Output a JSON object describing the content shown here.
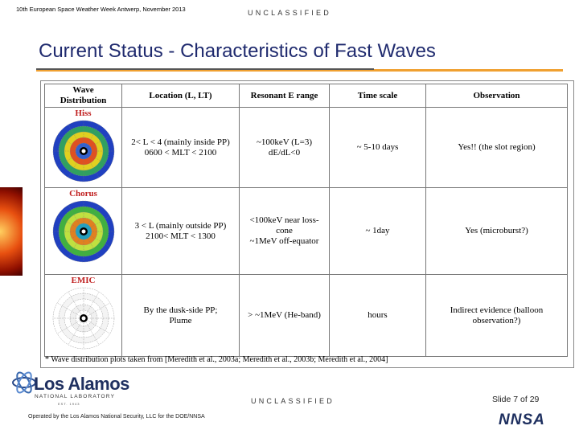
{
  "header": {
    "event": "10th European Space Weather Week Antwerp, November 2013",
    "classification": "UNCLASSIFIED"
  },
  "title": "Current Status - Characteristics of Fast Waves",
  "table": {
    "columns": [
      "Wave\nDistribution",
      "Location (L, LT)",
      "Resonant E range",
      "Time scale",
      "Observation"
    ],
    "rows": [
      [
        "Hiss",
        "2< L < 4 (mainly inside PP)\n0600 < MLT < 2100",
        "~100keV (L=3)\ndE/dL<0",
        "~ 5-10 days",
        "Yes!! (the slot region)"
      ],
      [
        "Chorus",
        "3 < L (mainly outside PP)\n2100< MLT < 1300",
        "<100keV near loss-\ncone\n~1MeV off-equator",
        "~ 1day",
        "Yes (microburst?)"
      ],
      [
        "EMIC",
        "By the dusk-side PP;\nPlume",
        "> ~1MeV (He-band)",
        "hours",
        "Indirect evidence (balloon\nobservation?)"
      ]
    ],
    "footnote": "* Wave distribution plots taken from [Meredith et al., 2003a; Meredith et al., 2003b; Meredith et al., 2004]"
  },
  "footer": {
    "logo_name": "Los Alamos",
    "logo_sub": "NATIONAL LABORATORY",
    "logo_est": "EST. 1943",
    "operated_by": "Operated by the Los Alamos National Security, LLC for the DOE/NNSA",
    "classification": "UNCLASSIFIED",
    "slide": "Slide 7  of 29",
    "agency": "NNSA"
  }
}
